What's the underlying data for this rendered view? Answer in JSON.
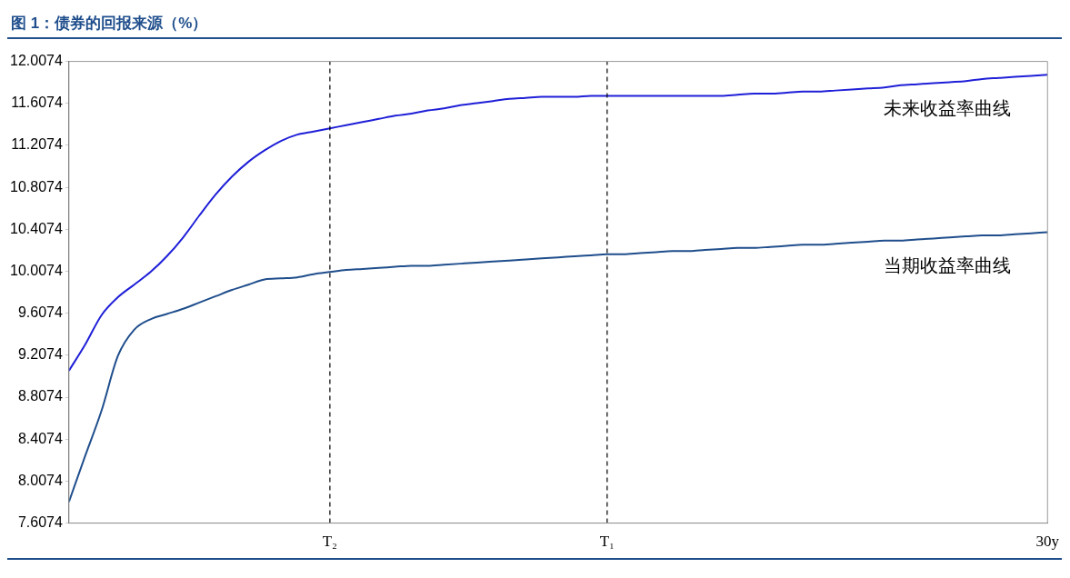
{
  "chart_data": {
    "type": "line",
    "title": "图 1：债券的回报来源（%）",
    "categories": [
      null,
      null,
      null,
      null,
      null,
      null,
      null,
      null,
      null,
      null,
      null,
      null,
      null,
      null,
      null,
      null,
      "T₂",
      null,
      null,
      null,
      null,
      null,
      null,
      null,
      null,
      null,
      null,
      null,
      null,
      null,
      null,
      null,
      null,
      "T₁",
      null,
      null,
      null,
      null,
      null,
      null,
      null,
      null,
      null,
      null,
      null,
      null,
      null,
      null,
      null,
      null,
      null,
      null,
      null,
      null,
      null,
      null,
      null,
      null,
      null,
      null,
      "30y"
    ],
    "ylim": [
      7.6074,
      12.0074
    ],
    "yticks": [
      7.6074,
      8.0074,
      8.4074,
      8.8074,
      9.2074,
      9.6074,
      10.0074,
      10.4074,
      10.8074,
      11.2074,
      11.6074,
      12.0074
    ],
    "grid": false,
    "legend": false,
    "marker": "none",
    "line_style": "solid",
    "series": [
      {
        "name": "未来收益率曲线",
        "color": "#1f1fd8",
        "values": [
          9.06,
          9.31,
          9.59,
          9.76,
          9.88,
          10.0,
          10.15,
          10.33,
          10.54,
          10.74,
          10.91,
          11.05,
          11.16,
          11.25,
          11.31,
          11.34,
          11.37,
          11.4,
          11.43,
          11.46,
          11.49,
          11.51,
          11.54,
          11.56,
          11.59,
          11.61,
          11.63,
          11.65,
          11.66,
          11.67,
          11.67,
          11.67,
          11.68,
          11.68,
          11.68,
          11.68,
          11.68,
          11.68,
          11.68,
          11.68,
          11.68,
          11.69,
          11.7,
          11.7,
          11.71,
          11.72,
          11.72,
          11.73,
          11.74,
          11.75,
          11.76,
          11.78,
          11.79,
          11.8,
          11.81,
          11.82,
          11.84,
          11.85,
          11.86,
          11.87,
          11.88
        ]
      },
      {
        "name": "当期收益率曲线",
        "color": "#1f4e8c",
        "values": [
          7.81,
          8.25,
          8.68,
          9.2,
          9.45,
          9.55,
          9.6,
          9.65,
          9.71,
          9.77,
          9.83,
          9.88,
          9.93,
          9.94,
          9.95,
          9.98,
          10.0,
          10.02,
          10.03,
          10.04,
          10.05,
          10.06,
          10.06,
          10.07,
          10.08,
          10.09,
          10.1,
          10.11,
          10.12,
          10.13,
          10.14,
          10.15,
          10.16,
          10.17,
          10.17,
          10.18,
          10.19,
          10.2,
          10.2,
          10.21,
          10.22,
          10.23,
          10.23,
          10.24,
          10.25,
          10.26,
          10.26,
          10.27,
          10.28,
          10.29,
          10.3,
          10.3,
          10.31,
          10.32,
          10.33,
          10.34,
          10.35,
          10.35,
          10.36,
          10.37,
          10.38
        ]
      }
    ],
    "ref_lines": [
      {
        "axis": "x",
        "value": "T₂",
        "color": "#000000",
        "line_style": "dashed"
      },
      {
        "axis": "x",
        "value": "T₁",
        "color": "#000000",
        "line_style": "dashed"
      }
    ]
  }
}
